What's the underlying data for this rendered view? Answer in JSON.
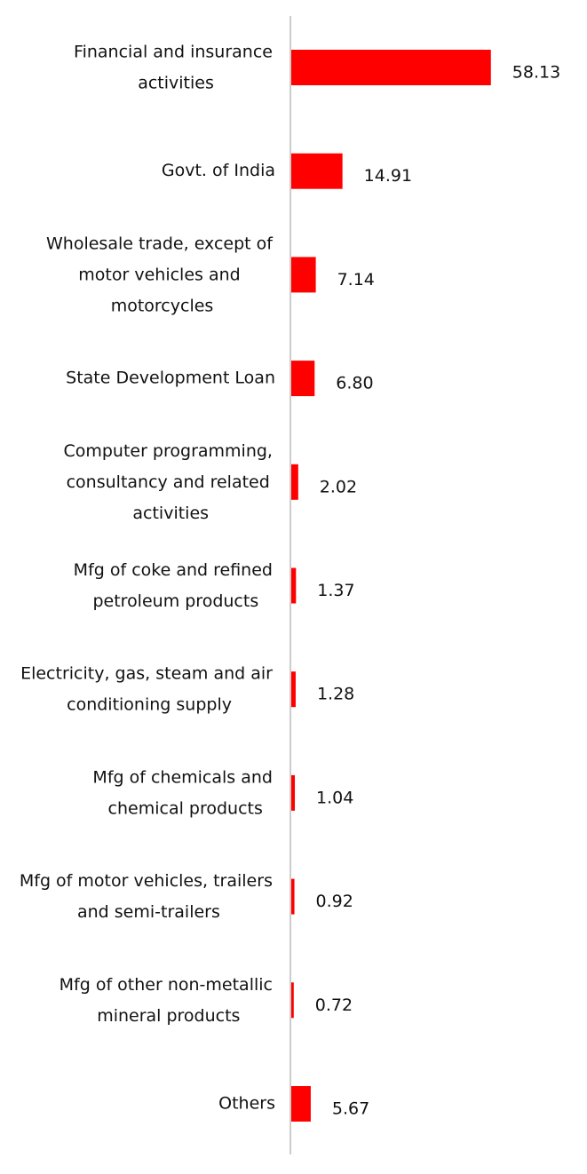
{
  "chart_data": {
    "type": "barh",
    "categories": [
      "Financial and insurance activities",
      "Govt. of India",
      "Wholesale trade, except of motor vehicles and motorcycles",
      "State Development Loan",
      "Computer programming, consultancy and related activities",
      "Mfg of coke and refined petroleum products",
      "Electricity, gas, steam and air conditioning supply",
      "Mfg of chemicals and chemical products",
      "Mfg of motor vehicles, trailers and semi-trailers",
      "Mfg of other non-metallic mineral products",
      "Others"
    ],
    "values": [
      58.13,
      14.91,
      7.14,
      6.8,
      2.02,
      1.37,
      1.28,
      1.04,
      0.92,
      0.72,
      5.67
    ],
    "value_labels": [
      "58.13",
      "14.91",
      "7.14",
      "6.80",
      "2.02",
      "1.37",
      "1.28",
      "1.04",
      "0.92",
      "0.72",
      "5.67"
    ],
    "color": "#ff0000",
    "xlim": [
      0,
      60
    ]
  }
}
